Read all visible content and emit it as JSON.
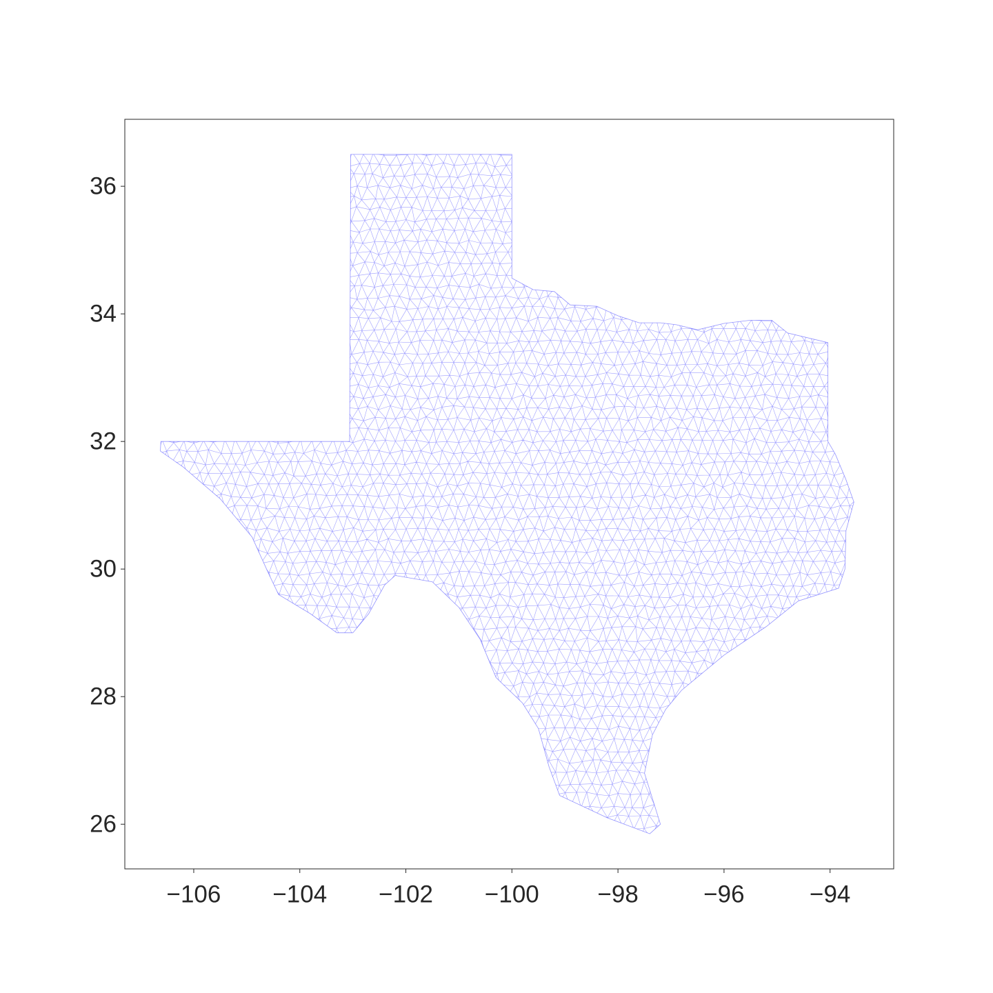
{
  "chart_data": {
    "type": "mesh",
    "description_of_marks": "triangulated mesh",
    "xlim": [
      -107.3,
      -92.8
    ],
    "ylim": [
      25.3,
      37.05
    ],
    "x_ticks": [
      {
        "value": -106,
        "label": "−106"
      },
      {
        "value": -104,
        "label": "−104"
      },
      {
        "value": -102,
        "label": "−102"
      },
      {
        "value": -100,
        "label": "−100"
      },
      {
        "value": -98,
        "label": "−98"
      },
      {
        "value": -96,
        "label": "−96"
      },
      {
        "value": -94,
        "label": "−94"
      }
    ],
    "y_ticks": [
      {
        "value": 26,
        "label": "26"
      },
      {
        "value": 28,
        "label": "28"
      },
      {
        "value": 30,
        "label": "30"
      },
      {
        "value": 32,
        "label": "32"
      },
      {
        "value": 34,
        "label": "34"
      },
      {
        "value": 36,
        "label": "36"
      }
    ],
    "mesh_color": "#4d4dff",
    "mesh_spacing_deg": 0.2,
    "boundary": [
      [
        -103.04,
        36.5
      ],
      [
        -100.0,
        36.5
      ],
      [
        -100.0,
        34.56
      ],
      [
        -99.6,
        34.38
      ],
      [
        -99.2,
        34.35
      ],
      [
        -98.9,
        34.14
      ],
      [
        -98.4,
        34.12
      ],
      [
        -98.0,
        33.97
      ],
      [
        -97.6,
        33.86
      ],
      [
        -97.2,
        33.86
      ],
      [
        -96.9,
        33.83
      ],
      [
        -96.5,
        33.75
      ],
      [
        -96.0,
        33.85
      ],
      [
        -95.5,
        33.9
      ],
      [
        -95.1,
        33.9
      ],
      [
        -94.8,
        33.7
      ],
      [
        -94.04,
        33.55
      ],
      [
        -94.04,
        32.0
      ],
      [
        -93.9,
        31.8
      ],
      [
        -93.7,
        31.4
      ],
      [
        -93.55,
        31.05
      ],
      [
        -93.7,
        30.6
      ],
      [
        -93.72,
        30.0
      ],
      [
        -93.84,
        29.7
      ],
      [
        -94.6,
        29.5
      ],
      [
        -95.2,
        29.1
      ],
      [
        -96.0,
        28.65
      ],
      [
        -96.8,
        28.1
      ],
      [
        -97.1,
        27.8
      ],
      [
        -97.35,
        27.4
      ],
      [
        -97.5,
        26.8
      ],
      [
        -97.2,
        26.0
      ],
      [
        -97.4,
        25.85
      ],
      [
        -98.2,
        26.1
      ],
      [
        -99.1,
        26.45
      ],
      [
        -99.3,
        26.9
      ],
      [
        -99.5,
        27.5
      ],
      [
        -99.8,
        27.9
      ],
      [
        -100.3,
        28.3
      ],
      [
        -100.6,
        28.9
      ],
      [
        -101.0,
        29.4
      ],
      [
        -101.5,
        29.8
      ],
      [
        -102.2,
        29.9
      ],
      [
        -102.4,
        29.75
      ],
      [
        -102.7,
        29.3
      ],
      [
        -103.0,
        29.0
      ],
      [
        -103.3,
        29.0
      ],
      [
        -103.8,
        29.3
      ],
      [
        -104.4,
        29.6
      ],
      [
        -104.6,
        29.95
      ],
      [
        -104.9,
        30.5
      ],
      [
        -105.5,
        31.1
      ],
      [
        -106.2,
        31.6
      ],
      [
        -106.63,
        31.85
      ],
      [
        -106.62,
        32.0
      ],
      [
        -103.06,
        32.0
      ],
      [
        -103.04,
        36.5
      ]
    ]
  }
}
